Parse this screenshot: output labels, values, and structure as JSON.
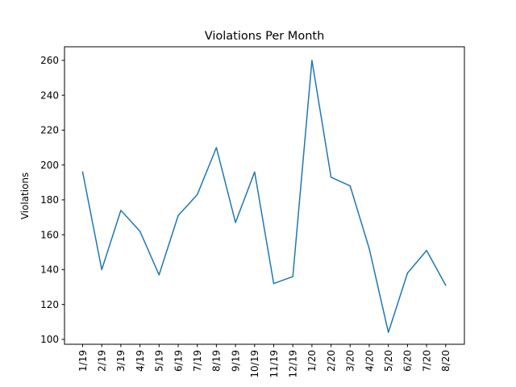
{
  "chart_data": {
    "type": "line",
    "title": "Violations Per Month",
    "xlabel": "",
    "ylabel": "Violations",
    "categories": [
      "1/19",
      "2/19",
      "3/19",
      "4/19",
      "5/19",
      "6/19",
      "7/19",
      "8/19",
      "9/19",
      "10/19",
      "11/19",
      "12/19",
      "1/20",
      "2/20",
      "3/20",
      "4/20",
      "5/20",
      "6/20",
      "7/20",
      "8/20"
    ],
    "series": [
      {
        "values": [
          196,
          140,
          174,
          162,
          137,
          171,
          183,
          210,
          167,
          196,
          132,
          136,
          260,
          193,
          188,
          152,
          104,
          138,
          151,
          131
        ],
        "color": "#1f77b4"
      }
    ],
    "ylim": [
      97.2,
      267.8
    ],
    "yticks": [
      100,
      120,
      140,
      160,
      180,
      200,
      220,
      240,
      260
    ],
    "grid": false,
    "legend": "none"
  }
}
